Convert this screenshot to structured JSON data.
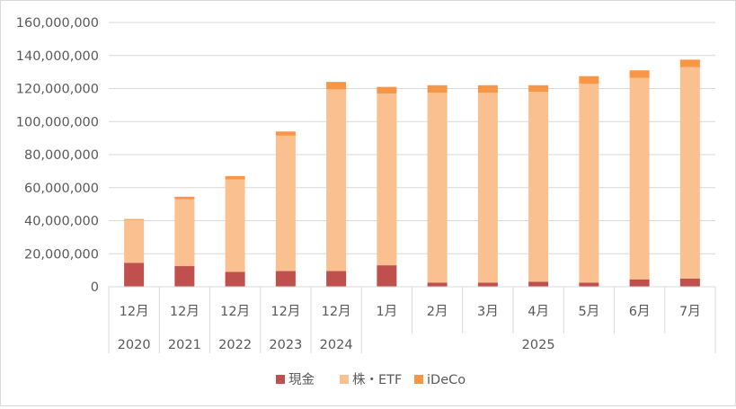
{
  "chart_data": {
    "type": "bar",
    "stacked": true,
    "categories": [
      "12月",
      "12月",
      "12月",
      "12月",
      "12月",
      "1月",
      "2月",
      "3月",
      "4月",
      "5月",
      "6月",
      "7月"
    ],
    "category_groups": [
      {
        "label": "2020",
        "span": 1
      },
      {
        "label": "2021",
        "span": 1
      },
      {
        "label": "2022",
        "span": 1
      },
      {
        "label": "2023",
        "span": 1
      },
      {
        "label": "2024",
        "span": 1
      },
      {
        "label": "2025",
        "span": 7
      }
    ],
    "series": [
      {
        "name": "現金",
        "color": "#c0504d",
        "values": [
          14500000,
          12500000,
          9000000,
          9500000,
          9500000,
          13000000,
          2500000,
          2500000,
          3000000,
          2500000,
          4500000,
          5000000
        ]
      },
      {
        "name": "株・ETF",
        "color": "#fac090",
        "values": [
          26000000,
          40500000,
          56000000,
          82000000,
          110000000,
          104000000,
          115000000,
          115000000,
          115000000,
          120500000,
          122000000,
          128000000
        ]
      },
      {
        "name": "iDeCo",
        "color": "#f79646",
        "values": [
          500000,
          1500000,
          2000000,
          2500000,
          4500000,
          4000000,
          4500000,
          4500000,
          4000000,
          4500000,
          4500000,
          4500000
        ]
      }
    ],
    "ylim": [
      0,
      160000000
    ],
    "yticks": [
      "0",
      "20,000,000",
      "40,000,000",
      "60,000,000",
      "80,000,000",
      "100,000,000",
      "120,000,000",
      "140,000,000",
      "160,000,000"
    ],
    "grid": true,
    "legend": "bottom",
    "title": "",
    "xlabel": "",
    "ylabel": ""
  }
}
